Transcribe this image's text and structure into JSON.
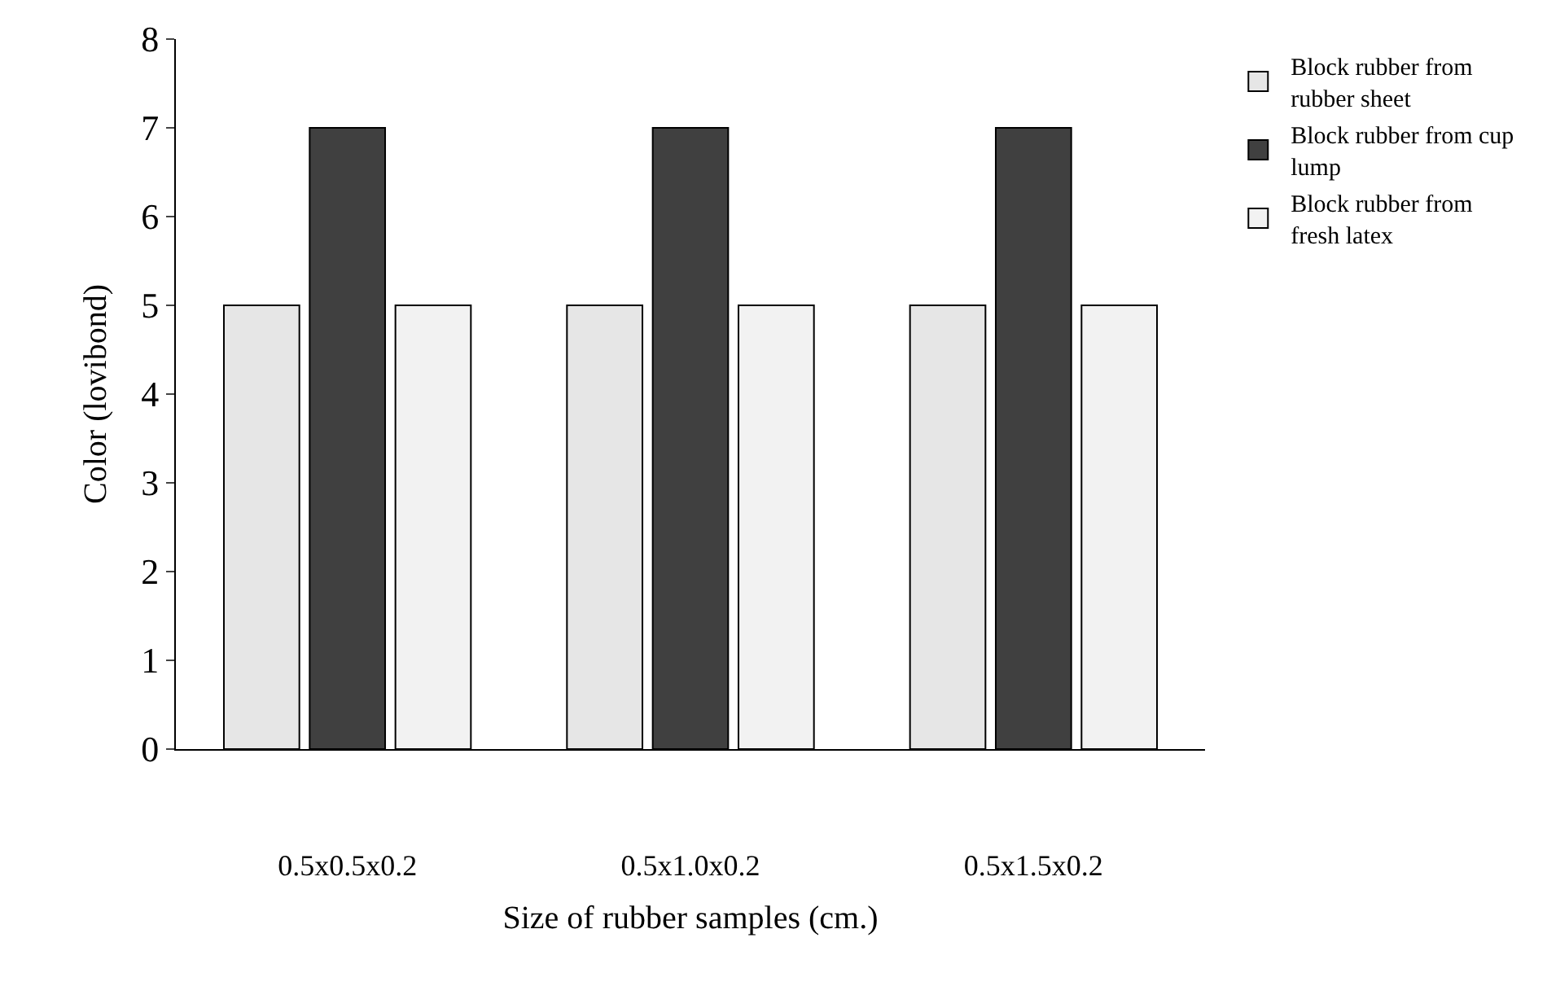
{
  "chart_data": {
    "type": "bar",
    "xlabel": "Size of rubber samples (cm.)",
    "ylabel": "Color (lovibond)",
    "categories": [
      "0.5x0.5x0.2",
      "0.5x1.0x0.2",
      "0.5x1.5x0.2"
    ],
    "series": [
      {
        "name": "Block rubber from rubber sheet",
        "color": "#e6e6e6",
        "values": [
          5,
          5,
          5
        ]
      },
      {
        "name": "Block rubber from cup lump",
        "color": "#404040",
        "values": [
          7,
          7,
          7
        ]
      },
      {
        "name": "Block rubber from fresh latex",
        "color": "#f2f2f2",
        "values": [
          5,
          5,
          5
        ]
      }
    ],
    "ylim": [
      0,
      8
    ],
    "yticks": [
      0,
      1,
      2,
      3,
      4,
      5,
      6,
      7,
      8
    ],
    "grid": false,
    "legend": "top right"
  }
}
